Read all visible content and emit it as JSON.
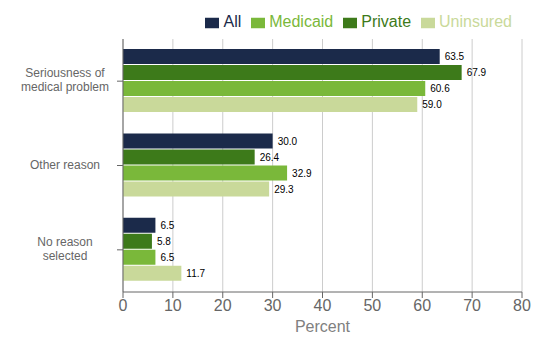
{
  "chart_data": {
    "type": "bar",
    "orientation": "horizontal",
    "categories": [
      "Seriousness of\nmedical problem",
      "Other reason",
      "No reason\nselected"
    ],
    "series": [
      {
        "name": "All",
        "color": "#1b2a4a",
        "values": [
          63.5,
          30.0,
          6.5
        ],
        "value_labels": [
          "63.5",
          "30.0",
          "6.5"
        ]
      },
      {
        "name": "Private",
        "color": "#3d7a1a",
        "values": [
          67.9,
          26.4,
          5.8
        ],
        "value_labels": [
          "67.9",
          "26.4",
          "5.8"
        ]
      },
      {
        "name": "Medicaid",
        "color": "#7ab83a",
        "values": [
          60.6,
          32.9,
          6.5
        ],
        "value_labels": [
          "60.6",
          "32.9",
          "6.5"
        ]
      },
      {
        "name": "Uninsured",
        "color": "#c9d99a",
        "values": [
          59.0,
          29.3,
          11.7
        ],
        "value_labels": [
          "59.0",
          "29.3",
          "11.7"
        ]
      }
    ],
    "xlabel": "Percent",
    "xlim": [
      0,
      80
    ],
    "xticks": [
      0,
      10,
      20,
      30,
      40,
      50,
      60,
      70,
      80
    ],
    "grid": true,
    "legend": "upper right",
    "data_labels": true
  }
}
